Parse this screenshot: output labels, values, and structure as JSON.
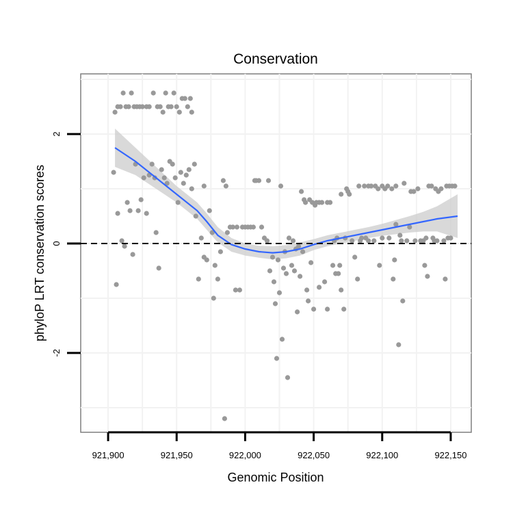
{
  "chart_data": {
    "type": "scatter",
    "title": "Conservation",
    "xlabel": "Genomic Position",
    "ylabel": "phyloP LRT conservation scores",
    "xlim": [
      921880,
      922165
    ],
    "ylim": [
      -3.45,
      3.1
    ],
    "x_ticks": [
      {
        "value": 921900,
        "label": "921,900"
      },
      {
        "value": 921950,
        "label": "921,950"
      },
      {
        "value": 922000,
        "label": "922,000"
      },
      {
        "value": 922050,
        "label": "922,050"
      },
      {
        "value": 922100,
        "label": "922,100"
      },
      {
        "value": 922150,
        "label": "922,150"
      }
    ],
    "y_ticks": [
      {
        "value": 2,
        "label": "2"
      },
      {
        "value": 0,
        "label": "0"
      },
      {
        "value": -2,
        "label": "-2"
      }
    ],
    "reference_line": {
      "y": 0,
      "style": "dashed"
    },
    "point_color": "#999999",
    "smooth_color": "#3366FF",
    "band_color": "#CCCCCC",
    "points": [
      [
        921905,
        2.4
      ],
      [
        921907,
        2.5
      ],
      [
        921909,
        2.5
      ],
      [
        921911,
        2.75
      ],
      [
        921913,
        2.5
      ],
      [
        921915,
        2.5
      ],
      [
        921917,
        2.75
      ],
      [
        921919,
        2.5
      ],
      [
        921921,
        2.5
      ],
      [
        921923,
        2.5
      ],
      [
        921925,
        2.5
      ],
      [
        921928,
        2.5
      ],
      [
        921930,
        2.5
      ],
      [
        921933,
        2.75
      ],
      [
        921936,
        2.5
      ],
      [
        921938,
        2.5
      ],
      [
        921940,
        2.4
      ],
      [
        921942,
        2.75
      ],
      [
        921944,
        2.5
      ],
      [
        921946,
        2.5
      ],
      [
        921948,
        2.75
      ],
      [
        921950,
        2.5
      ],
      [
        921952,
        2.4
      ],
      [
        921954,
        2.65
      ],
      [
        921956,
        2.65
      ],
      [
        921958,
        2.5
      ],
      [
        921960,
        2.65
      ],
      [
        921961,
        2.4
      ],
      [
        921904,
        1.3
      ],
      [
        921906,
        -0.75
      ],
      [
        921907,
        0.55
      ],
      [
        921910,
        0.05
      ],
      [
        921912,
        -0.05
      ],
      [
        921914,
        0.75
      ],
      [
        921916,
        0.6
      ],
      [
        921918,
        -0.2
      ],
      [
        921920,
        1.45
      ],
      [
        921922,
        0.6
      ],
      [
        921924,
        0.8
      ],
      [
        921926,
        1.2
      ],
      [
        921928,
        0.55
      ],
      [
        921930,
        1.25
      ],
      [
        921932,
        1.45
      ],
      [
        921934,
        1.2
      ],
      [
        921935,
        0.2
      ],
      [
        921937,
        -0.45
      ],
      [
        921939,
        1.35
      ],
      [
        921941,
        1.2
      ],
      [
        921943,
        1.1
      ],
      [
        921945,
        1.5
      ],
      [
        921947,
        1.45
      ],
      [
        921949,
        1.2
      ],
      [
        921951,
        0.75
      ],
      [
        921953,
        1.3
      ],
      [
        921955,
        1.1
      ],
      [
        921957,
        1.25
      ],
      [
        921959,
        1.35
      ],
      [
        921961,
        1.0
      ],
      [
        921963,
        1.45
      ],
      [
        921964,
        0.5
      ],
      [
        921966,
        -0.65
      ],
      [
        921968,
        0.1
      ],
      [
        921970,
        1.05
      ],
      [
        921970,
        -0.25
      ],
      [
        921972,
        -0.3
      ],
      [
        921974,
        0.6
      ],
      [
        921976,
        0.2
      ],
      [
        921977,
        -1.0
      ],
      [
        921978,
        -0.4
      ],
      [
        921980,
        -0.65
      ],
      [
        921982,
        -0.15
      ],
      [
        921984,
        1.15
      ],
      [
        921985,
        -3.2
      ],
      [
        921986,
        1.05
      ],
      [
        921987,
        0.2
      ],
      [
        921989,
        0.3
      ],
      [
        921991,
        0.3
      ],
      [
        921993,
        -0.85
      ],
      [
        921994,
        0.3
      ],
      [
        921996,
        -0.85
      ],
      [
        921998,
        0.3
      ],
      [
        922000,
        0.3
      ],
      [
        922002,
        0.3
      ],
      [
        922004,
        0.3
      ],
      [
        922006,
        0.3
      ],
      [
        922007,
        1.15
      ],
      [
        922008,
        1.15
      ],
      [
        922010,
        1.15
      ],
      [
        922012,
        0.3
      ],
      [
        922014,
        0.1
      ],
      [
        922016,
        0.05
      ],
      [
        922017,
        1.15
      ],
      [
        922018,
        -0.5
      ],
      [
        922020,
        -0.25
      ],
      [
        922021,
        -0.7
      ],
      [
        922022,
        -1.1
      ],
      [
        922023,
        -2.1
      ],
      [
        922024,
        -0.3
      ],
      [
        922025,
        -0.9
      ],
      [
        922026,
        1.05
      ],
      [
        922027,
        -1.75
      ],
      [
        922028,
        -0.45
      ],
      [
        922029,
        -0.15
      ],
      [
        922030,
        -0.55
      ],
      [
        922031,
        -2.45
      ],
      [
        922032,
        0.1
      ],
      [
        922034,
        -0.4
      ],
      [
        922035,
        0.05
      ],
      [
        922036,
        -0.5
      ],
      [
        922037,
        -0.1
      ],
      [
        922038,
        -1.25
      ],
      [
        922039,
        -0.05
      ],
      [
        922040,
        -0.6
      ],
      [
        922041,
        0.95
      ],
      [
        922042,
        -0.15
      ],
      [
        922043,
        0.8
      ],
      [
        922044,
        0.75
      ],
      [
        922045,
        -0.85
      ],
      [
        922046,
        -1.05
      ],
      [
        922047,
        0.8
      ],
      [
        922048,
        -0.35
      ],
      [
        922049,
        0.75
      ],
      [
        922050,
        -1.2
      ],
      [
        922051,
        0.7
      ],
      [
        922052,
        0.75
      ],
      [
        922054,
        -0.8
      ],
      [
        922054,
        0.75
      ],
      [
        922056,
        0.75
      ],
      [
        922058,
        -0.7
      ],
      [
        922060,
        0.75
      ],
      [
        922060,
        -1.2
      ],
      [
        922062,
        0.75
      ],
      [
        922064,
        -0.4
      ],
      [
        922065,
        0.05
      ],
      [
        922066,
        -0.55
      ],
      [
        922067,
        0.1
      ],
      [
        922068,
        -0.55
      ],
      [
        922069,
        -0.4
      ],
      [
        922070,
        0.9
      ],
      [
        922070,
        -0.85
      ],
      [
        922072,
        -1.2
      ],
      [
        922073,
        0.1
      ],
      [
        922074,
        1.0
      ],
      [
        922075,
        0.95
      ],
      [
        922076,
        0.9
      ],
      [
        922078,
        0.05
      ],
      [
        922080,
        -0.25
      ],
      [
        922082,
        -0.65
      ],
      [
        922083,
        1.05
      ],
      [
        922084,
        0.05
      ],
      [
        922085,
        0.1
      ],
      [
        922087,
        1.05
      ],
      [
        922088,
        0.1
      ],
      [
        922090,
        1.05
      ],
      [
        922090,
        0.05
      ],
      [
        922092,
        1.05
      ],
      [
        922094,
        0.05
      ],
      [
        922095,
        1.05
      ],
      [
        922097,
        1.0
      ],
      [
        922098,
        -0.4
      ],
      [
        922100,
        1.05
      ],
      [
        922100,
        0.1
      ],
      [
        922102,
        1.0
      ],
      [
        922104,
        1.05
      ],
      [
        922105,
        0.1
      ],
      [
        922107,
        1.0
      ],
      [
        922108,
        -0.65
      ],
      [
        922109,
        -0.3
      ],
      [
        922110,
        0.35
      ],
      [
        922110,
        1.05
      ],
      [
        922112,
        -1.85
      ],
      [
        922113,
        0.15
      ],
      [
        922114,
        0.05
      ],
      [
        922115,
        -1.05
      ],
      [
        922116,
        1.1
      ],
      [
        922118,
        0.05
      ],
      [
        922120,
        0.3
      ],
      [
        922121,
        0.95
      ],
      [
        922123,
        0.95
      ],
      [
        922124,
        0.05
      ],
      [
        922126,
        1.0
      ],
      [
        922128,
        0.05
      ],
      [
        922130,
        0.05
      ],
      [
        922131,
        -0.4
      ],
      [
        922132,
        0.1
      ],
      [
        922133,
        -0.6
      ],
      [
        922134,
        1.05
      ],
      [
        922136,
        1.05
      ],
      [
        922137,
        0.1
      ],
      [
        922138,
        0.05
      ],
      [
        922139,
        1.0
      ],
      [
        922140,
        0.05
      ],
      [
        922141,
        0.95
      ],
      [
        922143,
        1.0
      ],
      [
        922145,
        0.05
      ],
      [
        922146,
        -0.65
      ],
      [
        922147,
        1.05
      ],
      [
        922148,
        0.1
      ],
      [
        922149,
        1.05
      ],
      [
        922150,
        0.1
      ],
      [
        922151,
        1.05
      ],
      [
        922153,
        1.05
      ]
    ],
    "smooth_line": [
      [
        921905,
        1.75
      ],
      [
        921920,
        1.5
      ],
      [
        921935,
        1.2
      ],
      [
        921950,
        0.9
      ],
      [
        921965,
        0.6
      ],
      [
        921972,
        0.4
      ],
      [
        921980,
        0.15
      ],
      [
        921990,
        -0.02
      ],
      [
        922000,
        -0.1
      ],
      [
        922010,
        -0.15
      ],
      [
        922020,
        -0.17
      ],
      [
        922030,
        -0.15
      ],
      [
        922040,
        -0.1
      ],
      [
        922050,
        -0.02
      ],
      [
        922060,
        0.05
      ],
      [
        922070,
        0.1
      ],
      [
        922080,
        0.15
      ],
      [
        922090,
        0.2
      ],
      [
        922100,
        0.25
      ],
      [
        922110,
        0.3
      ],
      [
        922120,
        0.35
      ],
      [
        922130,
        0.4
      ],
      [
        922140,
        0.45
      ],
      [
        922155,
        0.5
      ]
    ],
    "smooth_band_upper": [
      [
        921905,
        2.1
      ],
      [
        921920,
        1.75
      ],
      [
        921935,
        1.4
      ],
      [
        921950,
        1.05
      ],
      [
        921965,
        0.75
      ],
      [
        921972,
        0.55
      ],
      [
        921980,
        0.3
      ],
      [
        921990,
        0.1
      ],
      [
        922000,
        0.0
      ],
      [
        922010,
        -0.04
      ],
      [
        922020,
        -0.05
      ],
      [
        922030,
        -0.03
      ],
      [
        922040,
        0.02
      ],
      [
        922050,
        0.08
      ],
      [
        922060,
        0.15
      ],
      [
        922070,
        0.2
      ],
      [
        922080,
        0.25
      ],
      [
        922090,
        0.3
      ],
      [
        922100,
        0.36
      ],
      [
        922110,
        0.43
      ],
      [
        922120,
        0.5
      ],
      [
        922130,
        0.58
      ],
      [
        922140,
        0.68
      ],
      [
        922155,
        0.9
      ]
    ],
    "smooth_band_lower": [
      [
        921905,
        1.4
      ],
      [
        921920,
        1.25
      ],
      [
        921935,
        1.0
      ],
      [
        921950,
        0.75
      ],
      [
        921965,
        0.45
      ],
      [
        921972,
        0.25
      ],
      [
        921980,
        0.02
      ],
      [
        921990,
        -0.15
      ],
      [
        922000,
        -0.22
      ],
      [
        922010,
        -0.26
      ],
      [
        922020,
        -0.29
      ],
      [
        922030,
        -0.27
      ],
      [
        922040,
        -0.22
      ],
      [
        922050,
        -0.12
      ],
      [
        922060,
        -0.05
      ],
      [
        922070,
        0.0
      ],
      [
        922080,
        0.05
      ],
      [
        922090,
        0.1
      ],
      [
        922100,
        0.14
      ],
      [
        922110,
        0.17
      ],
      [
        922120,
        0.2
      ],
      [
        922130,
        0.22
      ],
      [
        922140,
        0.22
      ],
      [
        922155,
        0.1
      ]
    ]
  }
}
